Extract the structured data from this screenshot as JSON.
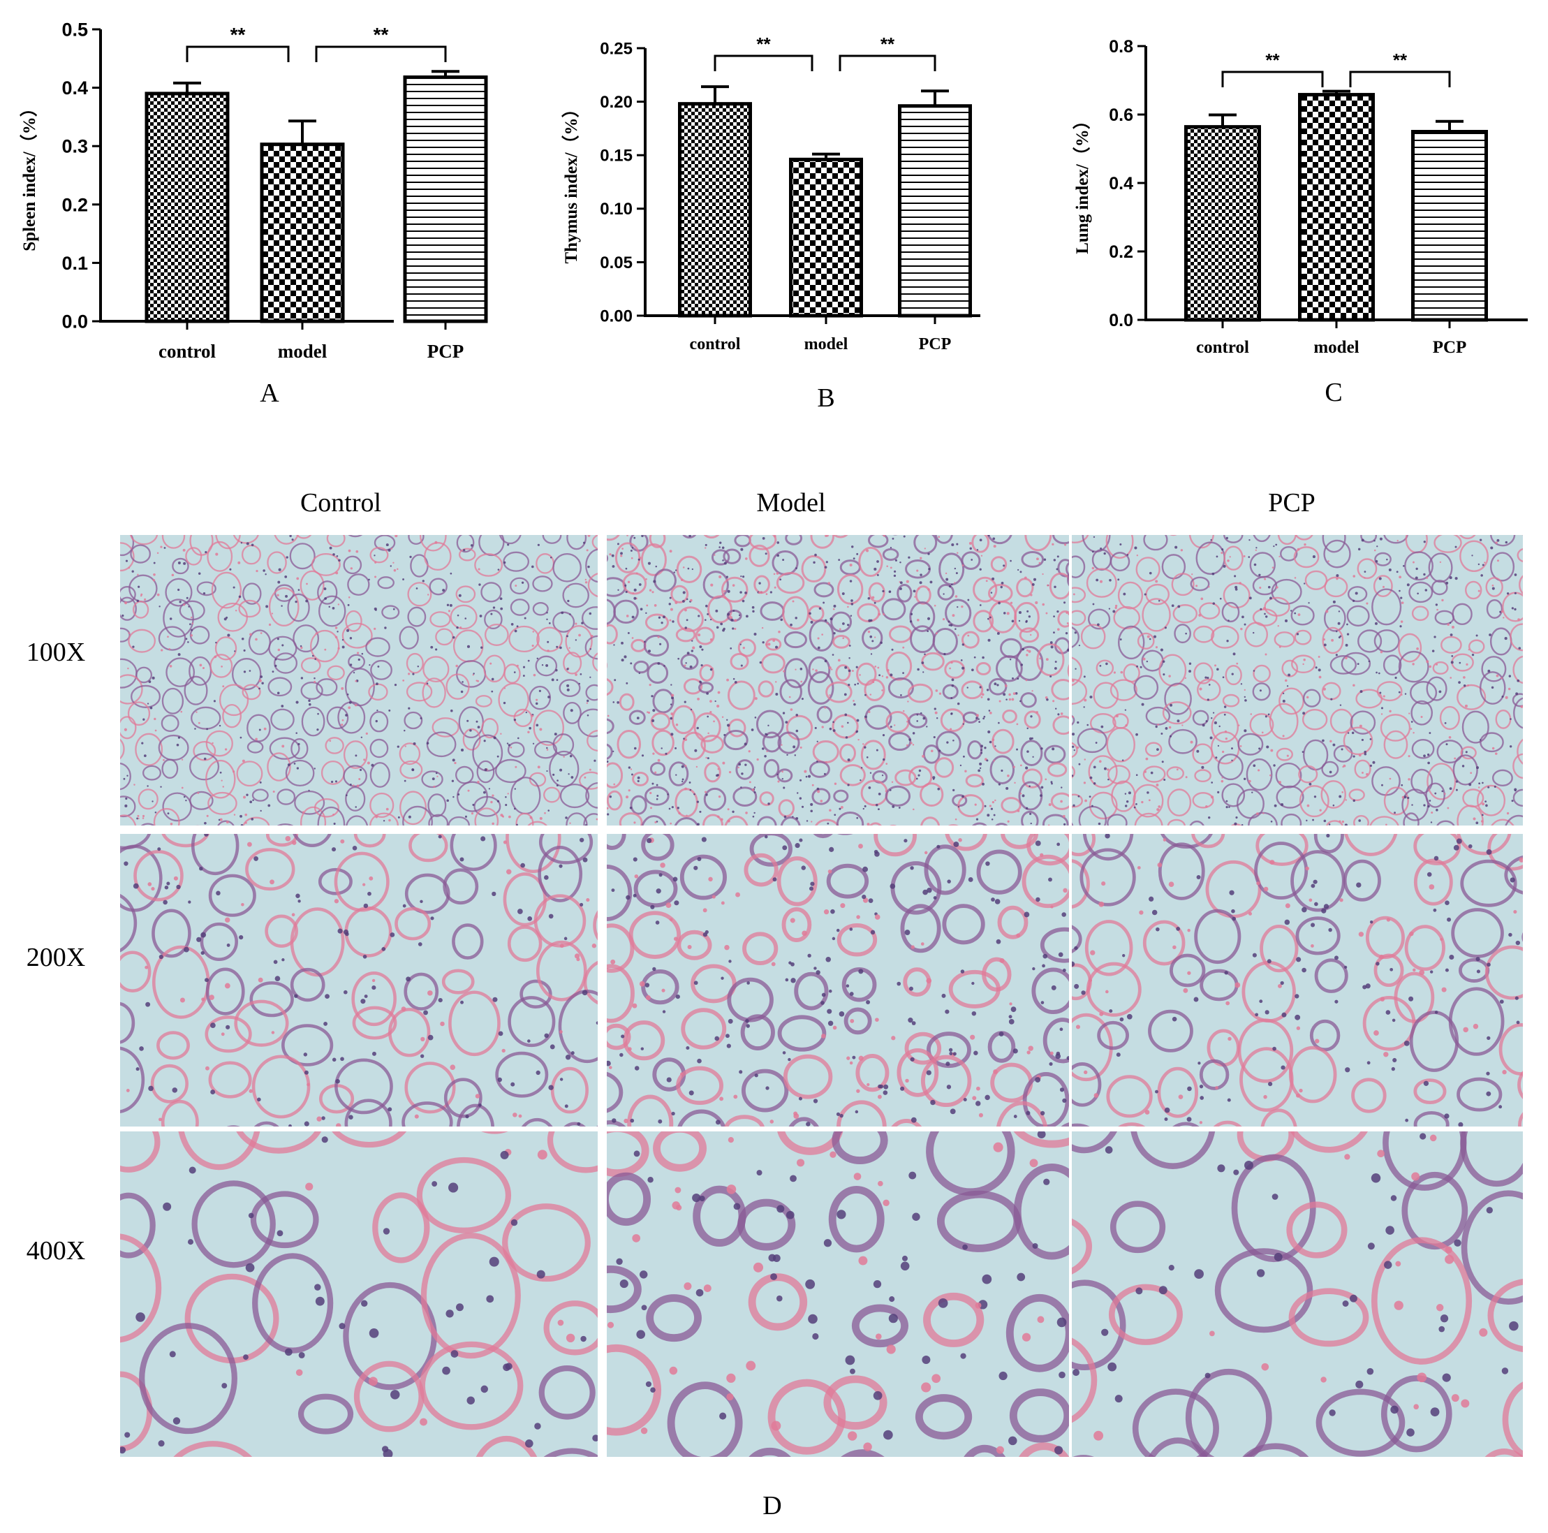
{
  "chart_data": [
    {
      "panel_label": "A",
      "type": "bar",
      "categories": [
        "control",
        "model",
        "PCP"
      ],
      "values": [
        0.39,
        0.303,
        0.418
      ],
      "error": [
        0.018,
        0.04,
        0.01
      ],
      "ylabel": "Spleen index/（%）",
      "ylim": [
        0,
        0.5
      ],
      "yticks": [
        "0.0",
        "0.1",
        "0.2",
        "0.3",
        "0.4",
        "0.5"
      ],
      "significance": [
        {
          "from": 0,
          "to": 1,
          "label": "**"
        },
        {
          "from": 1,
          "to": 2,
          "label": "**"
        }
      ]
    },
    {
      "panel_label": "B",
      "type": "bar",
      "categories": [
        "control",
        "model",
        "PCP"
      ],
      "values": [
        0.198,
        0.146,
        0.196
      ],
      "error": [
        0.016,
        0.005,
        0.014
      ],
      "ylabel": "Thymus index/（%）",
      "ylim": [
        0,
        0.25
      ],
      "yticks": [
        "0.00",
        "0.05",
        "0.10",
        "0.15",
        "0.20",
        "0.25"
      ],
      "significance": [
        {
          "from": 0,
          "to": 1,
          "label": "**"
        },
        {
          "from": 1,
          "to": 2,
          "label": "**"
        }
      ]
    },
    {
      "panel_label": "C",
      "type": "bar",
      "categories": [
        "control",
        "model",
        "PCP"
      ],
      "values": [
        0.564,
        0.658,
        0.55
      ],
      "error": [
        0.035,
        0.01,
        0.03
      ],
      "ylabel": "Lung index/（%）",
      "ylim": [
        0,
        0.8
      ],
      "yticks": [
        "0.0",
        "0.2",
        "0.4",
        "0.6",
        "0.8"
      ],
      "significance": [
        {
          "from": 0,
          "to": 1,
          "label": "**"
        },
        {
          "from": 1,
          "to": 2,
          "label": "**"
        }
      ]
    }
  ],
  "histology": {
    "panel_label": "D",
    "columns": [
      "Control",
      "Model",
      "PCP"
    ],
    "rows": [
      "100X",
      "200X",
      "400X"
    ]
  },
  "colors": {
    "bar_stroke": "#000000",
    "background": "#ffffff",
    "tissue_background": "#c5dde2",
    "tissue_pink": "#e07a98",
    "tissue_purple": "#55407a"
  }
}
